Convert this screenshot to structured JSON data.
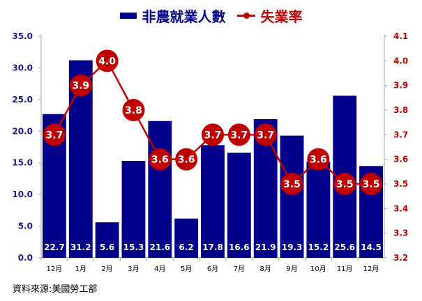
{
  "legend": {
    "bar_label": "非農就業人數",
    "line_label": "失業率"
  },
  "source": "資料來源:美國勞工部",
  "colors": {
    "bar": "#00008b",
    "line": "#c00000",
    "left_axis_text": "#1a1a8c",
    "right_axis_text": "#c00000",
    "axis": "#a6a6a6"
  },
  "chart_data": {
    "type": "bar",
    "title": "",
    "categories": [
      "12月",
      "1月",
      "2月",
      "3月",
      "4月",
      "5月",
      "6月",
      "7月",
      "8月",
      "9月",
      "10月",
      "11月",
      "12月"
    ],
    "series": [
      {
        "name": "非農就業人數",
        "type": "bar",
        "axis": "left",
        "values": [
          22.7,
          31.2,
          5.6,
          15.3,
          21.6,
          6.2,
          17.8,
          16.6,
          21.9,
          19.3,
          15.2,
          25.6,
          14.5
        ]
      },
      {
        "name": "失業率",
        "type": "line",
        "axis": "right",
        "values": [
          3.7,
          3.9,
          4.0,
          3.8,
          3.6,
          3.6,
          3.7,
          3.7,
          3.7,
          3.5,
          3.6,
          3.5,
          3.5
        ]
      }
    ],
    "left_axis": {
      "ylim": [
        0,
        35
      ],
      "ticks": [
        "0.0",
        "5.0",
        "10.0",
        "15.0",
        "20.0",
        "25.0",
        "30.0",
        "35.0"
      ]
    },
    "right_axis": {
      "ylim": [
        3.2,
        4.1
      ],
      "ticks": [
        "3.2",
        "3.3",
        "3.4",
        "3.5",
        "3.6",
        "3.7",
        "3.8",
        "3.9",
        "4.0",
        "4.1"
      ]
    },
    "xlabel": "",
    "ylabel": "",
    "grid": false,
    "legend_position": "top"
  }
}
